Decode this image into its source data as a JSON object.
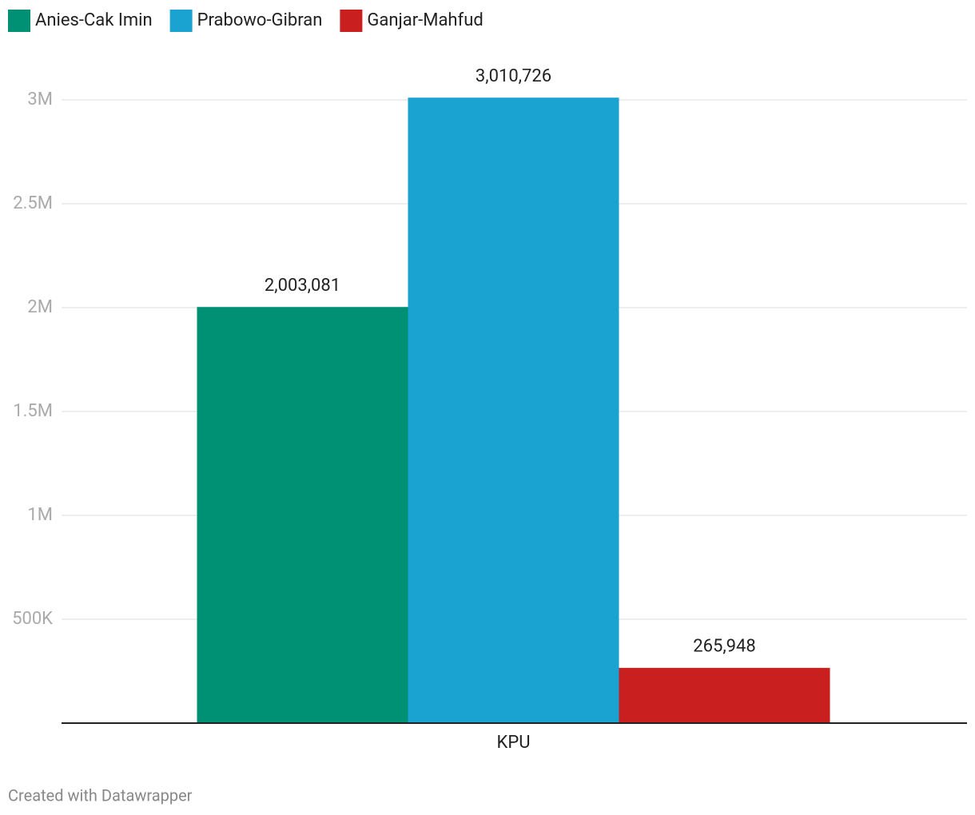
{
  "chart_data": {
    "type": "bar",
    "categories": [
      "KPU"
    ],
    "series": [
      {
        "name": "Anies-Cak Imin",
        "color": "#009073",
        "values": [
          2003081
        ],
        "value_labels": [
          "2,003,081"
        ]
      },
      {
        "name": "Prabowo-Gibran",
        "color": "#1aa2d0",
        "values": [
          3010726
        ],
        "value_labels": [
          "3,010,726"
        ]
      },
      {
        "name": "Ganjar-Mahfud",
        "color": "#c91f1f",
        "values": [
          265948
        ],
        "value_labels": [
          "265,948"
        ]
      }
    ],
    "ylim": [
      0,
      3000000
    ],
    "yticks": [
      {
        "value": 500000,
        "label": "500K"
      },
      {
        "value": 1000000,
        "label": "1M"
      },
      {
        "value": 1500000,
        "label": "1.5M"
      },
      {
        "value": 2000000,
        "label": "2M"
      },
      {
        "value": 2500000,
        "label": "2.5M"
      },
      {
        "value": 3000000,
        "label": "3M"
      }
    ],
    "grid": true,
    "legend": "top",
    "footer": "Created with Datawrapper"
  }
}
